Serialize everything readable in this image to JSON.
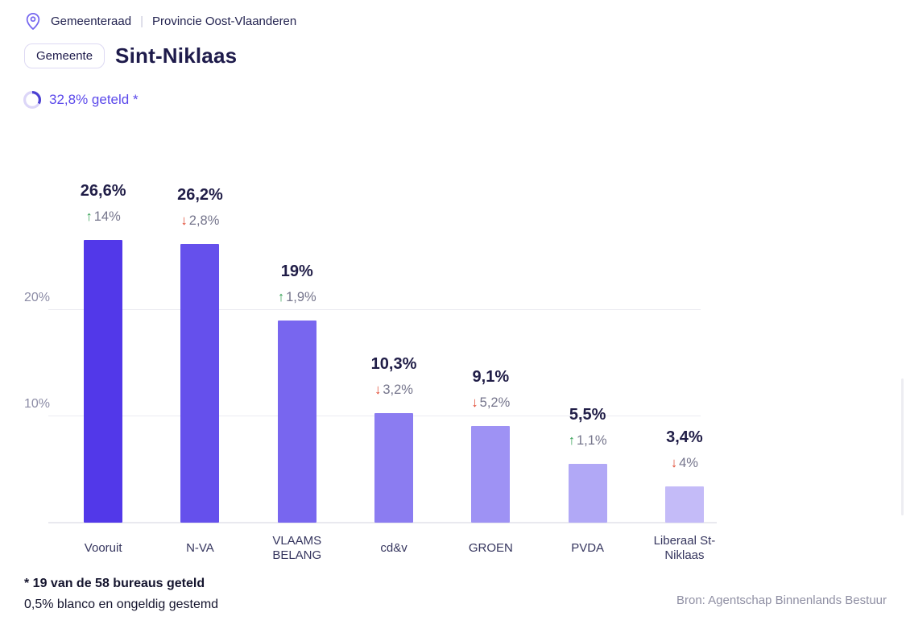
{
  "header": {
    "breadcrumb": {
      "items": [
        "Gemeenteraad",
        "Provincie Oost-Vlaanderen"
      ],
      "separator": "|"
    },
    "badge_label": "Gemeente",
    "title": "Sint-Niklaas",
    "counted": {
      "label": "32,8% geteld *",
      "percent": 32.8
    }
  },
  "chart_data": {
    "type": "bar",
    "categories": [
      "Vooruit",
      "N-VA",
      "VLAAMS BELANG",
      "cd&v",
      "GROEN",
      "PVDA",
      "Liberaal St-Niklaas"
    ],
    "display_labels": [
      "Vooruit",
      "N-VA",
      "VLAAMS\nBELANG",
      "cd&v",
      "GROEN",
      "PVDA",
      "Liberaal St-\nNiklaas"
    ],
    "values": [
      26.6,
      26.2,
      19,
      10.3,
      9.1,
      5.5,
      3.4
    ],
    "value_labels": [
      "26,6%",
      "26,2%",
      "19%",
      "10,3%",
      "9,1%",
      "5,5%",
      "3,4%"
    ],
    "changes": [
      {
        "direction": "up",
        "label": "14%"
      },
      {
        "direction": "down",
        "label": "2,8%"
      },
      {
        "direction": "up",
        "label": "1,9%"
      },
      {
        "direction": "down",
        "label": "3,2%"
      },
      {
        "direction": "down",
        "label": "5,2%"
      },
      {
        "direction": "up",
        "label": "1,1%"
      },
      {
        "direction": "down",
        "label": "4%"
      }
    ],
    "bar_colors": [
      "#5238E9",
      "#6550EC",
      "#7866EF",
      "#8B7CF1",
      "#9E92F4",
      "#B1A8F6",
      "#C4BBF8"
    ],
    "change_colors": {
      "up": "#2E9E4F",
      "down": "#E0472F"
    },
    "arrows": {
      "up": "↑",
      "down": "↓"
    },
    "yticks": [
      {
        "value": 10,
        "label": "10%"
      },
      {
        "value": 20,
        "label": "20%"
      }
    ],
    "ylim": [
      0,
      34
    ],
    "grid": true,
    "legend": "none",
    "title": "",
    "xlabel": "",
    "ylabel": ""
  },
  "footer": {
    "note_bold": "* 19 van de 58 bureaus geteld",
    "note": "0,5% blanco en ongeldig gestemd",
    "source": "Bron: Agentschap Binnenlands Bestuur"
  }
}
